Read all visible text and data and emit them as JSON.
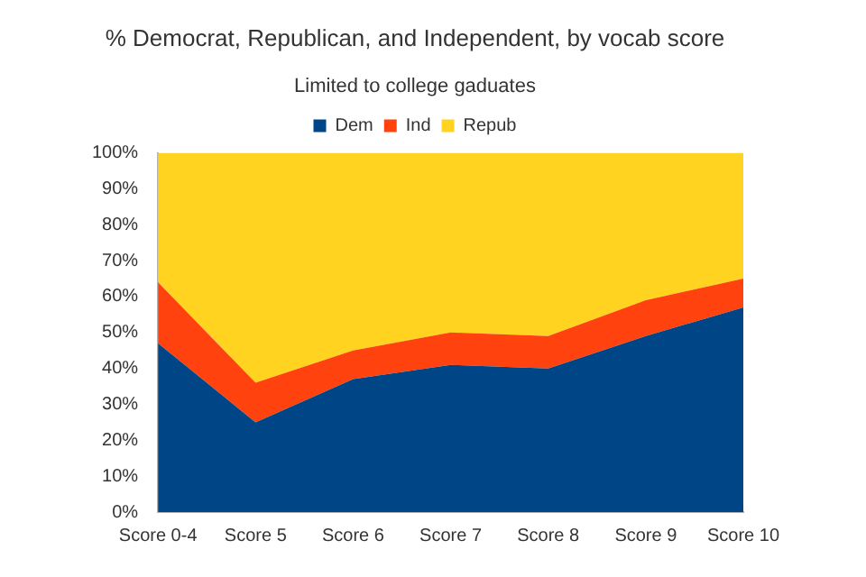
{
  "chart_data": {
    "type": "area",
    "title": "% Democrat, Republican, and Independent, by vocab score",
    "subtitle": "Limited to college gaduates",
    "categories": [
      "Score 0-4",
      "Score 5",
      "Score 6",
      "Score 7",
      "Score 8",
      "Score 9",
      "Score 10"
    ],
    "stacked": true,
    "series": [
      {
        "name": "Dem",
        "color": "#004586",
        "values": [
          47,
          25,
          37,
          41,
          40,
          49,
          57
        ]
      },
      {
        "name": "Ind",
        "color": "#ff420e",
        "values": [
          17,
          11,
          8,
          9,
          9,
          10,
          8
        ]
      },
      {
        "name": "Repub",
        "color": "#ffd320",
        "values": [
          36,
          64,
          55,
          50,
          51,
          41,
          35
        ]
      }
    ],
    "ylim": [
      0,
      100
    ],
    "yticks": [
      {
        "value": 0,
        "label": "0%"
      },
      {
        "value": 10,
        "label": "10%"
      },
      {
        "value": 20,
        "label": "20%"
      },
      {
        "value": 30,
        "label": "30%"
      },
      {
        "value": 40,
        "label": "40%"
      },
      {
        "value": 50,
        "label": "50%"
      },
      {
        "value": 60,
        "label": "60%"
      },
      {
        "value": 70,
        "label": "70%"
      },
      {
        "value": 80,
        "label": "80%"
      },
      {
        "value": 90,
        "label": "90%"
      },
      {
        "value": 100,
        "label": "100%"
      }
    ],
    "grid": false,
    "legend": "top"
  }
}
